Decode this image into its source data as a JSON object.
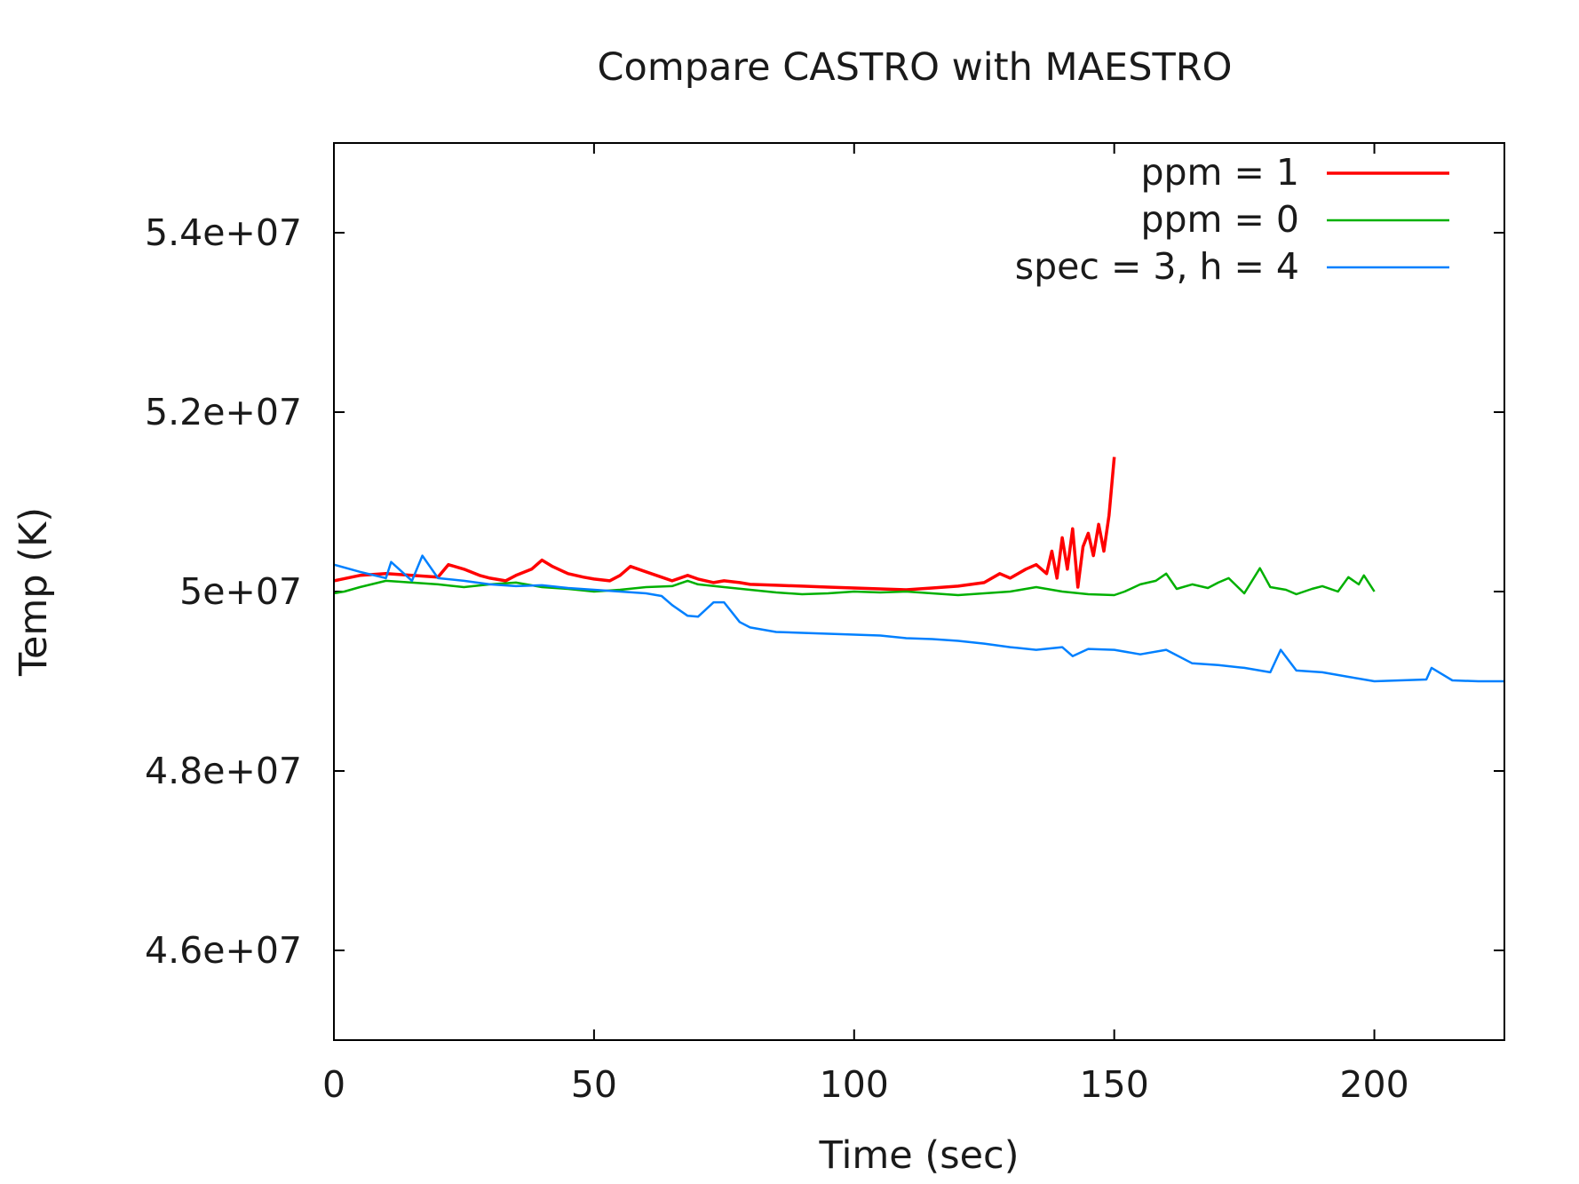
{
  "chart_data": {
    "type": "line",
    "title": "Compare CASTRO with MAESTRO",
    "xlabel": "Time (sec)",
    "ylabel": "Temp (K)",
    "xlim": [
      0,
      225
    ],
    "ylim": [
      45000000,
      55000000
    ],
    "xticks": [
      {
        "value": 0,
        "label": "0"
      },
      {
        "value": 50,
        "label": "50"
      },
      {
        "value": 100,
        "label": "100"
      },
      {
        "value": 150,
        "label": "150"
      },
      {
        "value": 200,
        "label": "200"
      }
    ],
    "yticks": [
      {
        "value": 46000000,
        "label": "4.6e+07"
      },
      {
        "value": 48000000,
        "label": "4.8e+07"
      },
      {
        "value": 50000000,
        "label": "5e+07"
      },
      {
        "value": 52000000,
        "label": "5.2e+07"
      },
      {
        "value": 54000000,
        "label": "5.4e+07"
      }
    ],
    "grid": false,
    "legend_position": "top-right",
    "series": [
      {
        "name": "ppm = 1",
        "color": "#ff0000",
        "x": [
          0,
          5,
          10,
          15,
          20,
          22,
          25,
          28,
          30,
          33,
          35,
          38,
          40,
          42,
          45,
          48,
          50,
          53,
          55,
          57,
          60,
          63,
          65,
          68,
          70,
          73,
          75,
          78,
          80,
          85,
          90,
          95,
          100,
          105,
          110,
          115,
          120,
          125,
          128,
          130,
          133,
          135,
          137,
          138,
          139,
          140,
          141,
          142,
          143,
          144,
          145,
          146,
          147,
          148,
          149,
          150
        ],
        "y": [
          50120000,
          50180000,
          50200000,
          50180000,
          50160000,
          50300000,
          50250000,
          50180000,
          50150000,
          50120000,
          50180000,
          50250000,
          50350000,
          50280000,
          50200000,
          50160000,
          50140000,
          50120000,
          50180000,
          50280000,
          50220000,
          50160000,
          50120000,
          50180000,
          50140000,
          50100000,
          50120000,
          50100000,
          50080000,
          50070000,
          50060000,
          50050000,
          50040000,
          50030000,
          50020000,
          50040000,
          50060000,
          50100000,
          50200000,
          50150000,
          50250000,
          50300000,
          50200000,
          50450000,
          50150000,
          50600000,
          50250000,
          50700000,
          50050000,
          50500000,
          50650000,
          50400000,
          50750000,
          50450000,
          50850000,
          51500000
        ]
      },
      {
        "name": "ppm = 0",
        "color": "#00b000",
        "x": [
          0,
          2,
          5,
          10,
          15,
          20,
          25,
          30,
          35,
          40,
          45,
          50,
          55,
          60,
          65,
          68,
          70,
          75,
          80,
          85,
          90,
          95,
          100,
          105,
          110,
          115,
          120,
          125,
          130,
          135,
          140,
          145,
          150,
          152,
          155,
          158,
          160,
          162,
          165,
          168,
          170,
          172,
          175,
          178,
          180,
          183,
          185,
          188,
          190,
          193,
          195,
          197,
          198,
          200
        ],
        "y": [
          49980000,
          50000000,
          50050000,
          50120000,
          50100000,
          50080000,
          50050000,
          50080000,
          50100000,
          50050000,
          50030000,
          50000000,
          50020000,
          50050000,
          50060000,
          50120000,
          50080000,
          50050000,
          50020000,
          49990000,
          49970000,
          49980000,
          50000000,
          49990000,
          50000000,
          49980000,
          49960000,
          49980000,
          50000000,
          50050000,
          50000000,
          49970000,
          49960000,
          50000000,
          50080000,
          50120000,
          50200000,
          50030000,
          50080000,
          50040000,
          50100000,
          50150000,
          49980000,
          50260000,
          50050000,
          50020000,
          49970000,
          50030000,
          50060000,
          50000000,
          50160000,
          50080000,
          50180000,
          50000000
        ]
      },
      {
        "name": "spec = 3, h = 4",
        "color": "#0080ff",
        "x": [
          0,
          5,
          10,
          11,
          15,
          17,
          20,
          25,
          30,
          35,
          40,
          45,
          50,
          55,
          60,
          63,
          65,
          68,
          70,
          73,
          75,
          78,
          80,
          85,
          90,
          95,
          100,
          105,
          110,
          115,
          120,
          125,
          130,
          135,
          140,
          142,
          145,
          150,
          155,
          160,
          165,
          170,
          175,
          180,
          182,
          185,
          190,
          195,
          200,
          205,
          210,
          211,
          215,
          220,
          225
        ],
        "y": [
          50300000,
          50220000,
          50150000,
          50330000,
          50120000,
          50400000,
          50150000,
          50120000,
          50080000,
          50060000,
          50070000,
          50040000,
          50020000,
          50000000,
          49980000,
          49950000,
          49850000,
          49730000,
          49720000,
          49880000,
          49880000,
          49660000,
          49600000,
          49550000,
          49540000,
          49530000,
          49520000,
          49510000,
          49480000,
          49470000,
          49450000,
          49420000,
          49380000,
          49350000,
          49380000,
          49280000,
          49360000,
          49350000,
          49300000,
          49350000,
          49200000,
          49180000,
          49150000,
          49100000,
          49350000,
          49120000,
          49100000,
          49050000,
          49000000,
          49010000,
          49020000,
          49150000,
          49010000,
          49000000,
          49000000
        ]
      }
    ]
  }
}
